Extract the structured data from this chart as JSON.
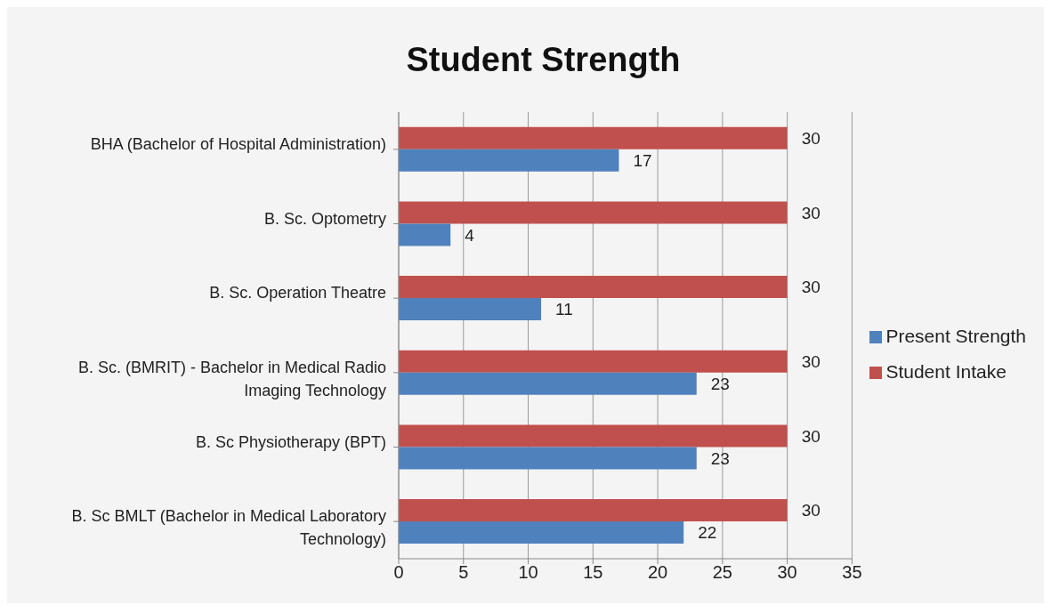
{
  "chart_data": {
    "type": "bar",
    "orientation": "horizontal",
    "title": "Student Strength",
    "categories": [
      "BHA (Bachelor of Hospital Administration)",
      "B. Sc. Optometry",
      "B. Sc. Operation Theatre",
      "B. Sc. (BMRIT) - Bachelor in Medical Radio Imaging Technology",
      "B. Sc Physiotherapy (BPT)",
      "B. Sc  BMLT (Bachelor in Medical Laboratory Technology)"
    ],
    "series": [
      {
        "name": "Student Intake",
        "color": "#c0504d",
        "values": [
          30,
          30,
          30,
          30,
          30,
          30
        ]
      },
      {
        "name": "Present Strength",
        "color": "#4f81bd",
        "values": [
          17,
          4,
          11,
          23,
          23,
          22
        ]
      }
    ],
    "xlim": [
      0,
      35
    ],
    "xticks": [
      0,
      5,
      10,
      15,
      20,
      25,
      30,
      35
    ],
    "grid": "x",
    "legend": "right",
    "data_labels": true
  }
}
